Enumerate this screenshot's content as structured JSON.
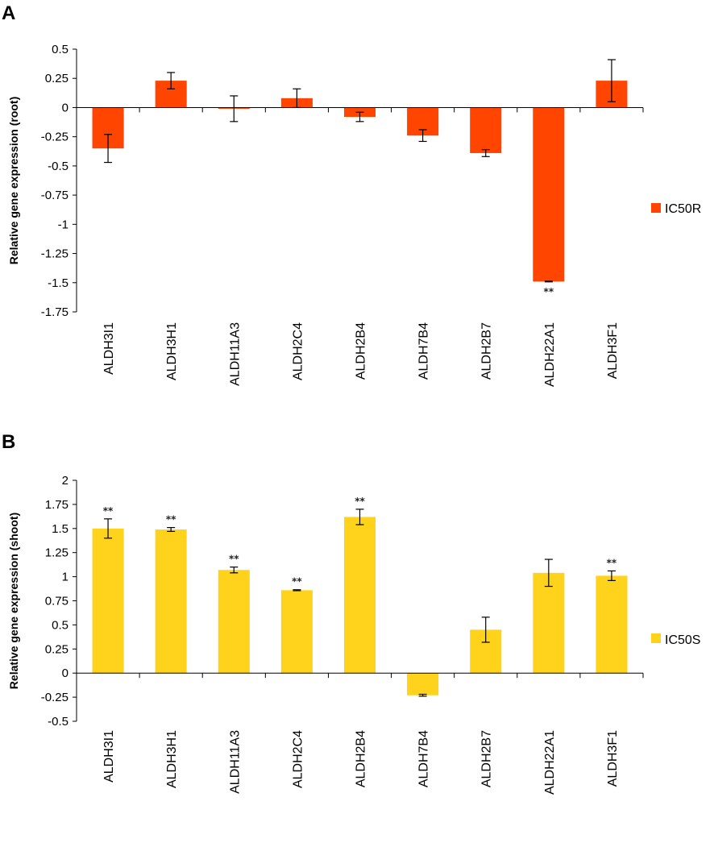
{
  "chart_data": [
    {
      "type": "bar",
      "panel": "A",
      "title": "",
      "xlabel": "",
      "ylabel": "Relative gene expression (root)",
      "ylim": [
        -1.75,
        0.5
      ],
      "yticks": [
        "0.5",
        "0.25",
        "0",
        "-0.25",
        "-0.5",
        "-0.75",
        "-1",
        "-1.25",
        "-1.5",
        "-1.75"
      ],
      "yticks_values": [
        0.5,
        0.25,
        0,
        -0.25,
        -0.5,
        -0.75,
        -1,
        -1.25,
        -1.5,
        -1.75
      ],
      "categories": [
        "ALDH3I1",
        "ALDH3H1",
        "ALDH11A3",
        "ALDH2C4",
        "ALDH2B4",
        "ALDH7B4",
        "ALDH2B7",
        "ALDH22A1",
        "ALDH3F1"
      ],
      "series": [
        {
          "name": "IC50R",
          "color": "#FF4500",
          "values": [
            -0.35,
            0.23,
            -0.01,
            0.08,
            -0.08,
            -0.24,
            -0.39,
            -1.49,
            0.23
          ],
          "errors": [
            0.12,
            0.07,
            0.11,
            0.08,
            0.04,
            0.05,
            0.03,
            0.003,
            0.18
          ],
          "significance": [
            "",
            "",
            "",
            "",
            "",
            "",
            "",
            "**",
            ""
          ]
        }
      ],
      "legend": "right"
    },
    {
      "type": "bar",
      "panel": "B",
      "title": "",
      "xlabel": "",
      "ylabel": "Relative gene expression (shoot)",
      "ylim": [
        -0.5,
        2
      ],
      "yticks": [
        "2",
        "1.75",
        "1.5",
        "1.25",
        "1",
        "0.75",
        "0.5",
        "0.25",
        "0",
        "-0.25",
        "-0.5"
      ],
      "yticks_values": [
        2,
        1.75,
        1.5,
        1.25,
        1,
        0.75,
        0.5,
        0.25,
        0,
        -0.25,
        -0.5
      ],
      "categories": [
        "ALDH3I1",
        "ALDH3H1",
        "ALDH11A3",
        "ALDH2C4",
        "ALDH2B4",
        "ALDH7B4",
        "ALDH2B7",
        "ALDH22A1",
        "ALDH3F1"
      ],
      "series": [
        {
          "name": "IC50S",
          "color": "#FFD21C",
          "values": [
            1.5,
            1.49,
            1.07,
            0.86,
            1.62,
            -0.23,
            0.45,
            1.04,
            1.01
          ],
          "errors": [
            0.1,
            0.02,
            0.03,
            0.005,
            0.08,
            0.01,
            0.13,
            0.14,
            0.05
          ],
          "significance": [
            "**",
            "**",
            "**",
            "**",
            "**",
            "",
            "",
            "",
            "**"
          ]
        }
      ],
      "legend": "right"
    }
  ]
}
